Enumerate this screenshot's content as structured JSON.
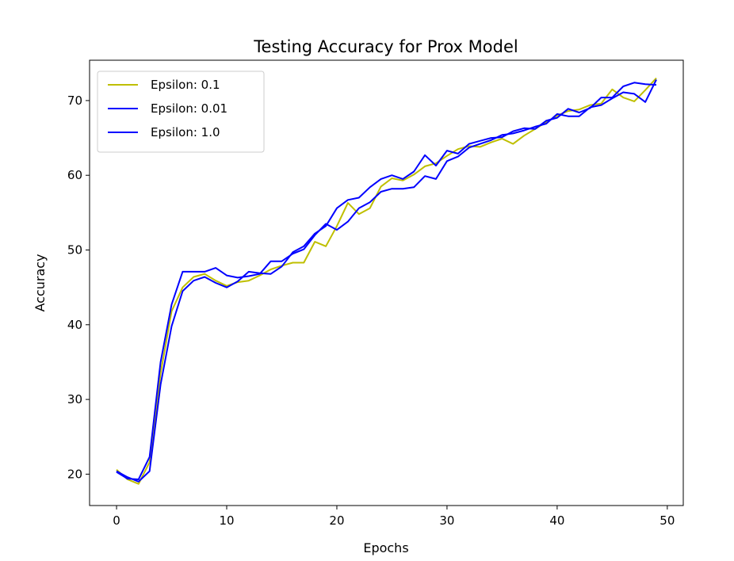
{
  "chart_data": {
    "type": "line",
    "title": "Testing Accuracy for Prox Model",
    "xlabel": "Epochs",
    "ylabel": "Accuracy",
    "xlim": [
      -2.45,
      51.45
    ],
    "ylim": [
      15.8,
      75.4
    ],
    "xticks": [
      0,
      10,
      20,
      30,
      40,
      50
    ],
    "yticks": [
      20,
      30,
      40,
      50,
      60,
      70
    ],
    "grid": false,
    "legend_position": "top-left",
    "x": [
      0,
      1,
      2,
      3,
      4,
      5,
      6,
      7,
      8,
      9,
      10,
      11,
      12,
      13,
      14,
      15,
      16,
      17,
      18,
      19,
      20,
      21,
      22,
      23,
      24,
      25,
      26,
      27,
      28,
      29,
      30,
      31,
      32,
      33,
      34,
      35,
      36,
      37,
      38,
      39,
      40,
      41,
      42,
      43,
      44,
      45,
      46,
      47,
      48,
      49
    ],
    "series": [
      {
        "name": "Epsilon: 0.1",
        "color": "#bfbf00",
        "values": [
          20.6,
          19.3,
          18.7,
          21.6,
          33.5,
          41.8,
          45.0,
          46.4,
          46.8,
          45.9,
          45.2,
          45.7,
          45.9,
          46.6,
          47.4,
          47.9,
          48.3,
          48.3,
          51.1,
          50.5,
          53.2,
          56.3,
          54.8,
          55.6,
          58.5,
          59.6,
          59.3,
          60.1,
          61.2,
          61.6,
          62.6,
          63.5,
          63.9,
          63.8,
          64.4,
          64.9,
          64.2,
          65.3,
          66.2,
          67.1,
          68.0,
          68.6,
          68.8,
          69.4,
          69.6,
          71.5,
          70.4,
          69.9,
          71.4,
          73.0
        ]
      },
      {
        "name": "Epsilon: 0.01",
        "color": "#0000ff",
        "values": [
          20.3,
          19.4,
          19.3,
          22.3,
          35.0,
          42.7,
          47.1,
          47.1,
          47.1,
          47.6,
          46.6,
          46.3,
          46.5,
          46.8,
          48.5,
          48.5,
          49.5,
          50.1,
          52.0,
          53.5,
          52.7,
          53.8,
          55.6,
          56.4,
          57.8,
          58.2,
          58.2,
          58.4,
          59.9,
          59.5,
          61.9,
          62.5,
          63.7,
          64.2,
          64.7,
          65.4,
          65.6,
          66.0,
          66.5,
          66.9,
          68.2,
          67.9,
          67.9,
          69.1,
          69.4,
          70.3,
          71.1,
          70.9,
          69.8,
          72.8
        ]
      },
      {
        "name": "Epsilon: 1.0",
        "color": "#0000ff",
        "values": [
          20.4,
          19.6,
          19.0,
          20.4,
          32.0,
          39.8,
          44.5,
          45.9,
          46.4,
          45.6,
          45.0,
          45.8,
          47.1,
          46.9,
          46.8,
          47.8,
          49.7,
          50.5,
          52.2,
          53.2,
          55.6,
          56.7,
          57.0,
          58.4,
          59.5,
          60.0,
          59.5,
          60.5,
          62.7,
          61.3,
          63.3,
          62.9,
          64.2,
          64.6,
          65.0,
          65.1,
          65.9,
          66.3,
          66.2,
          67.3,
          67.7,
          68.9,
          68.4,
          69.0,
          70.4,
          70.4,
          71.9,
          72.4,
          72.2,
          72.1
        ]
      }
    ]
  }
}
